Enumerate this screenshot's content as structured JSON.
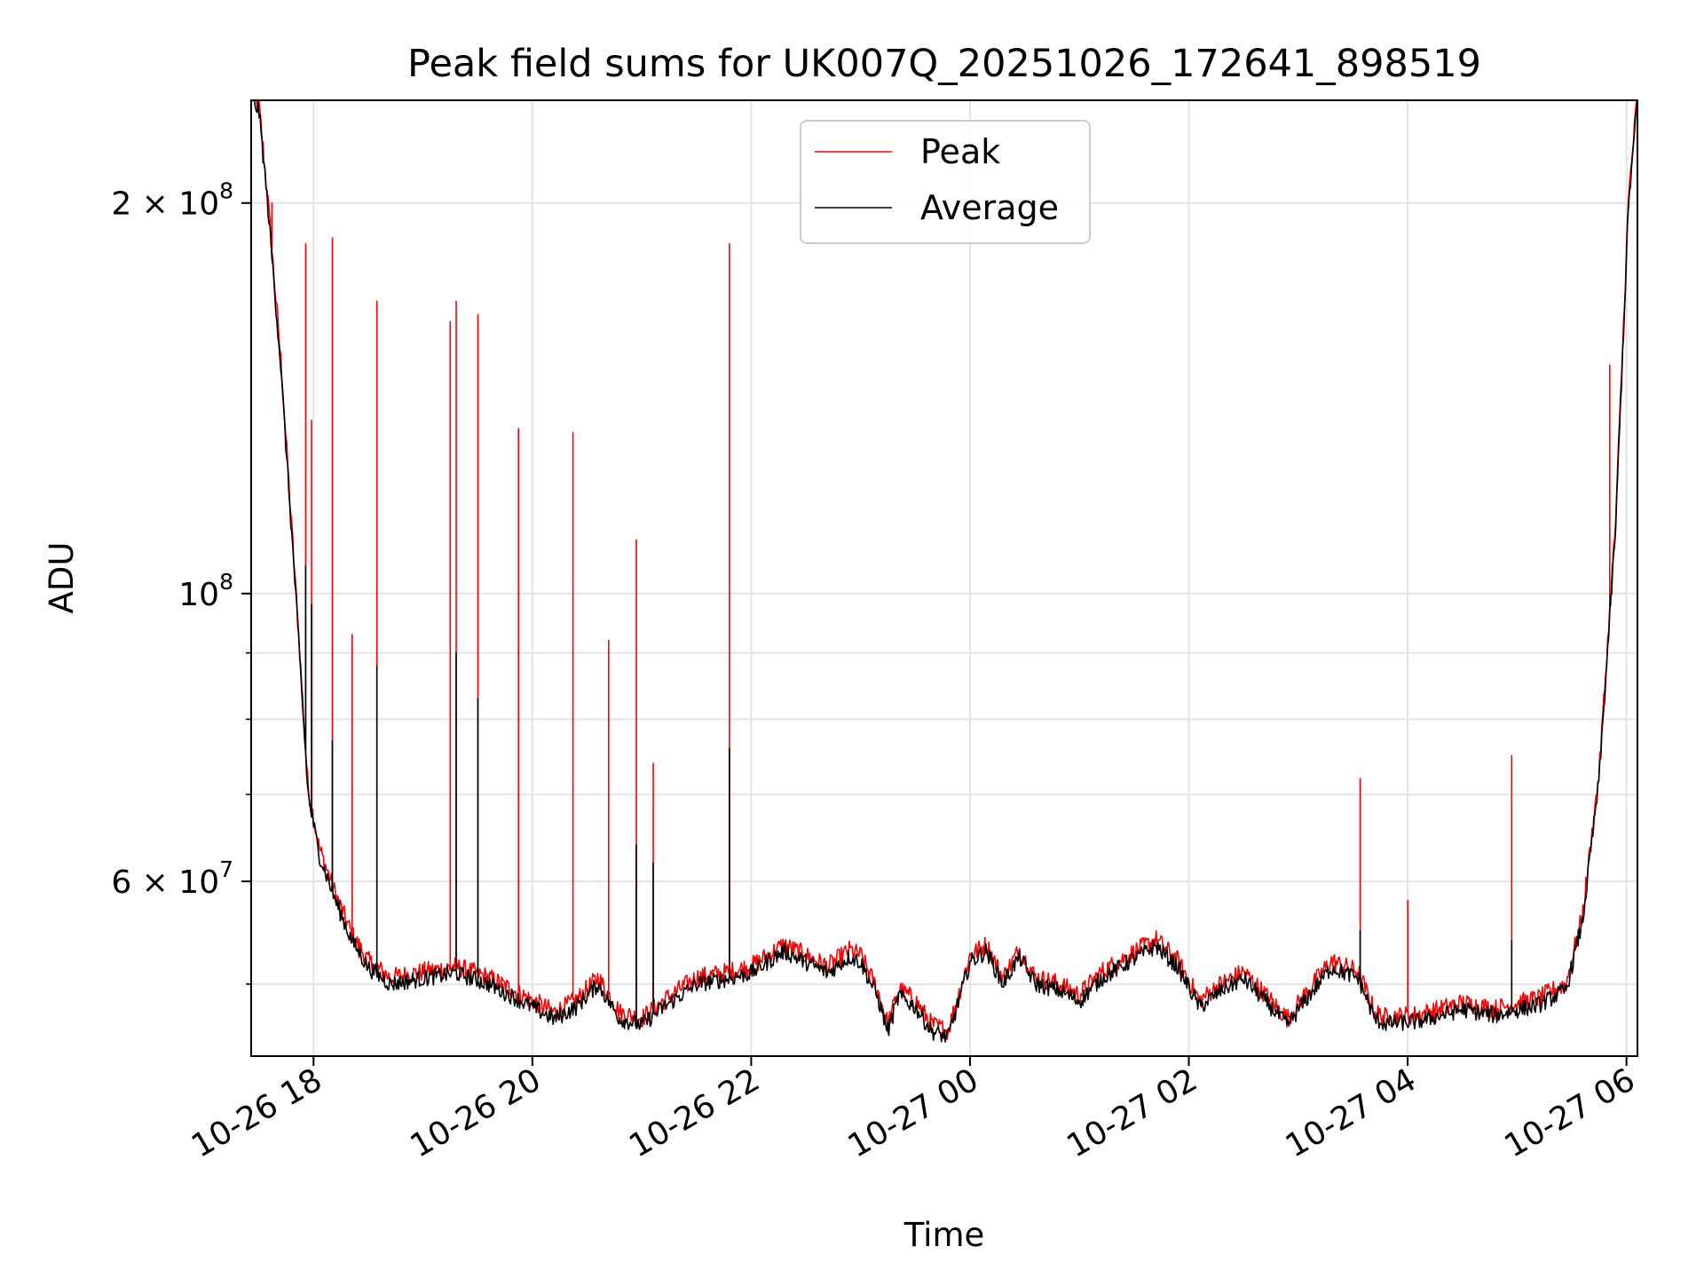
{
  "chart_data": {
    "type": "line",
    "title": "Peak field sums for UK007Q_20251026_172641_898519",
    "xlabel": "Time",
    "ylabel": "ADU",
    "yscale": "log",
    "grid": true,
    "legend_position": "top-center",
    "x_unit": "hours since 10-26 00:00",
    "xlim": [
      17.43,
      30.1
    ],
    "ylim": [
      44000000,
      240000000
    ],
    "x_ticks": [
      {
        "value": 18,
        "label": "10-26 18"
      },
      {
        "value": 20,
        "label": "10-26 20"
      },
      {
        "value": 22,
        "label": "10-26 22"
      },
      {
        "value": 24,
        "label": "10-27 00"
      },
      {
        "value": 26,
        "label": "10-27 02"
      },
      {
        "value": 28,
        "label": "10-27 04"
      },
      {
        "value": 30,
        "label": "10-27 06"
      }
    ],
    "y_ticks": [
      {
        "value": 60000000,
        "base": "6 × 10",
        "exp": "7"
      },
      {
        "value": 100000000,
        "base": "10",
        "exp": "8"
      },
      {
        "value": 200000000,
        "base": "2 × 10",
        "exp": "8"
      }
    ],
    "y_minor_ticks": [
      50000000,
      70000000,
      80000000,
      90000000
    ],
    "average_baseline": [
      [
        17.43,
        240000000
      ],
      [
        17.5,
        236000000
      ],
      [
        17.58,
        200000000
      ],
      [
        17.7,
        150000000
      ],
      [
        17.85,
        96000000
      ],
      [
        17.95,
        70000000
      ],
      [
        18.05,
        63000000
      ],
      [
        18.2,
        58000000
      ],
      [
        18.35,
        54000000
      ],
      [
        18.5,
        51500000
      ],
      [
        18.7,
        50000000
      ],
      [
        19.0,
        50500000
      ],
      [
        19.3,
        51000000
      ],
      [
        19.6,
        50000000
      ],
      [
        19.8,
        49000000
      ],
      [
        20.0,
        48000000
      ],
      [
        20.2,
        47000000
      ],
      [
        20.4,
        48000000
      ],
      [
        20.6,
        50000000
      ],
      [
        20.8,
        47000000
      ],
      [
        21.0,
        46500000
      ],
      [
        21.2,
        48000000
      ],
      [
        21.5,
        50000000
      ],
      [
        21.8,
        50500000
      ],
      [
        22.0,
        51000000
      ],
      [
        22.15,
        52000000
      ],
      [
        22.3,
        53000000
      ],
      [
        22.5,
        52000000
      ],
      [
        22.7,
        51000000
      ],
      [
        22.9,
        52500000
      ],
      [
        23.0,
        52000000
      ],
      [
        23.15,
        49000000
      ],
      [
        23.25,
        46000000
      ],
      [
        23.35,
        49000000
      ],
      [
        23.5,
        48000000
      ],
      [
        23.65,
        46000000
      ],
      [
        23.8,
        45500000
      ],
      [
        24.0,
        52000000
      ],
      [
        24.15,
        53000000
      ],
      [
        24.3,
        50000000
      ],
      [
        24.45,
        52500000
      ],
      [
        24.6,
        50000000
      ],
      [
        24.8,
        49500000
      ],
      [
        25.0,
        48500000
      ],
      [
        25.2,
        50500000
      ],
      [
        25.45,
        52000000
      ],
      [
        25.7,
        53500000
      ],
      [
        25.9,
        51500000
      ],
      [
        26.1,
        48000000
      ],
      [
        26.3,
        49500000
      ],
      [
        26.5,
        50500000
      ],
      [
        26.7,
        48500000
      ],
      [
        26.9,
        46500000
      ],
      [
        27.1,
        49000000
      ],
      [
        27.3,
        51500000
      ],
      [
        27.55,
        50500000
      ],
      [
        27.7,
        47000000
      ],
      [
        27.8,
        46600000
      ],
      [
        28.1,
        46800000
      ],
      [
        28.5,
        47800000
      ],
      [
        28.8,
        47300000
      ],
      [
        29.2,
        48200000
      ],
      [
        29.45,
        49500000
      ],
      [
        29.6,
        56000000
      ],
      [
        29.75,
        72000000
      ],
      [
        29.9,
        112000000
      ],
      [
        30.02,
        200000000
      ],
      [
        30.1,
        240000000
      ]
    ],
    "series": [
      {
        "name": "Peak",
        "color": "#ff0000",
        "spikes": [
          [
            17.62,
            200000000
          ],
          [
            17.93,
            186000000
          ],
          [
            17.98,
            136000000
          ],
          [
            18.17,
            188000000
          ],
          [
            18.35,
            93000000
          ],
          [
            18.58,
            168000000
          ],
          [
            19.25,
            162000000
          ],
          [
            19.3,
            168000000
          ],
          [
            19.5,
            164000000
          ],
          [
            19.87,
            134000000
          ],
          [
            20.37,
            133000000
          ],
          [
            20.7,
            92000000
          ],
          [
            20.95,
            110000000
          ],
          [
            21.1,
            74000000
          ],
          [
            21.8,
            186000000
          ],
          [
            27.57,
            72000000
          ],
          [
            28.0,
            58000000
          ],
          [
            28.95,
            75000000
          ],
          [
            29.85,
            150000000
          ]
        ]
      },
      {
        "name": "Average",
        "color": "#000000",
        "spikes": [
          [
            17.93,
            105000000
          ],
          [
            17.98,
            98000000
          ],
          [
            18.17,
            77000000
          ],
          [
            18.58,
            88000000
          ],
          [
            19.3,
            90000000
          ],
          [
            19.5,
            83000000
          ],
          [
            20.95,
            64000000
          ],
          [
            21.1,
            62000000
          ],
          [
            21.8,
            76000000
          ],
          [
            27.57,
            55000000
          ],
          [
            28.95,
            54000000
          ]
        ]
      }
    ]
  }
}
